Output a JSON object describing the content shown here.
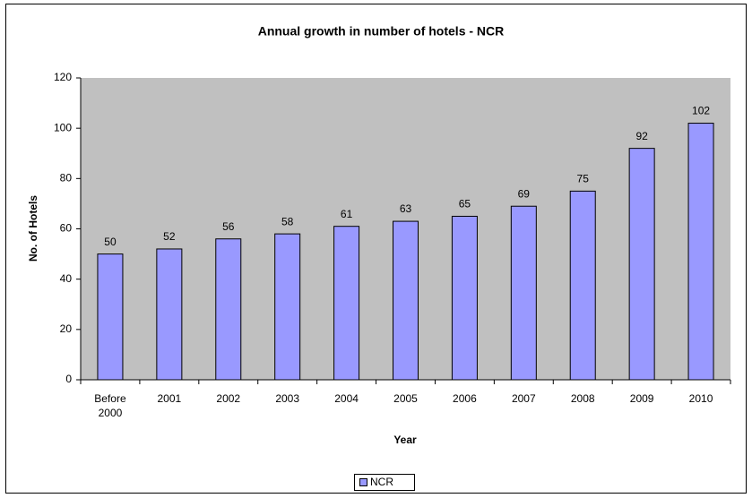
{
  "chart_data": {
    "type": "bar",
    "title": "Annual growth in number of hotels - NCR",
    "x_label": "Year",
    "y_label": "No. of Hotels",
    "categories": [
      "Before 2000",
      "2001",
      "2002",
      "2003",
      "2004",
      "2005",
      "2006",
      "2007",
      "2008",
      "2009",
      "2010"
    ],
    "series": [
      {
        "name": "NCR",
        "color": "#9999ff",
        "values": [
          50,
          52,
          56,
          58,
          61,
          63,
          65,
          69,
          75,
          92,
          102
        ]
      }
    ],
    "ylim": [
      0,
      120
    ],
    "yticks": [
      0,
      20,
      40,
      60,
      80,
      100,
      120
    ],
    "grid": false,
    "legend": "bottom"
  }
}
